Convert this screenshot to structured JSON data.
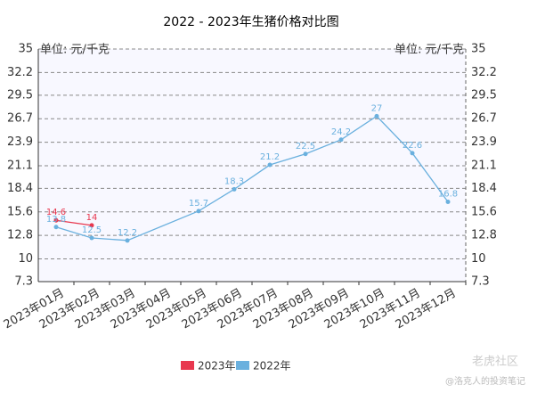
{
  "chart_data": {
    "type": "line",
    "title": "2022 - 2023年生猪价格对比图",
    "y_label": "单位: 元/千克",
    "y2_label": "单位: 元/千克",
    "categories": [
      "2023年01月",
      "2023年02月",
      "2023年03月",
      "2023年04月",
      "2023年05月",
      "2023年06月",
      "2023年07月",
      "2023年08月",
      "2023年09月",
      "2023年10月",
      "2023年11月",
      "2023年12月"
    ],
    "series": [
      {
        "name": "2023年",
        "color": "#e8384f",
        "values": [
          14.6,
          14,
          null,
          null,
          null,
          null,
          null,
          null,
          null,
          null,
          null,
          null
        ]
      },
      {
        "name": "2022年",
        "color": "#6ab0de",
        "values": [
          13.8,
          12.5,
          12.2,
          null,
          15.7,
          18.3,
          21.2,
          22.5,
          24.2,
          27,
          22.6,
          16.8
        ]
      }
    ],
    "connect_nulls": true,
    "ylim": [
      7.3,
      35
    ],
    "yticks": [
      7.3,
      10,
      12.8,
      15.6,
      18.4,
      21.1,
      23.9,
      26.7,
      29.5,
      32.2,
      35
    ],
    "grid": true,
    "legend": "bottom",
    "watermark": [
      "老虎社区",
      "@洛克人的投资笔记"
    ]
  }
}
